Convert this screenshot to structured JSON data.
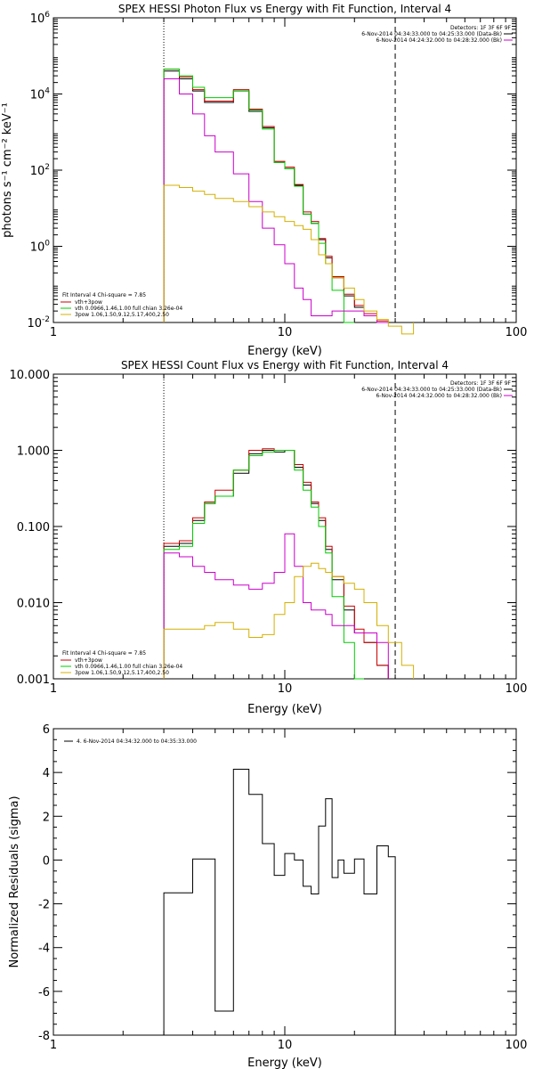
{
  "colors": {
    "black": "#000000",
    "red": "#cc0000",
    "green": "#00cc00",
    "magenta": "#cc00cc",
    "yellow": "#d4b000"
  },
  "chart_data": [
    {
      "type": "line",
      "title": "SPEX HESSI Photon Flux vs Energy with Fit Function, Interval 4",
      "xlabel": "Energy (keV)",
      "ylabel": "photons s⁻¹ cm⁻² keV⁻¹",
      "xscale": "log",
      "yscale": "log",
      "xlim": [
        1,
        100
      ],
      "ylim": [
        0.01,
        1000000
      ],
      "x_ticks": [
        "1",
        "10",
        "100"
      ],
      "y_ticks": [
        {
          "v": 0.01,
          "base": "10",
          "exp": "-2"
        },
        {
          "v": 1,
          "base": "10",
          "exp": "0"
        },
        {
          "v": 100,
          "base": "10",
          "exp": "2"
        },
        {
          "v": 10000,
          "base": "10",
          "exp": "4"
        },
        {
          "v": 1000000,
          "base": "10",
          "exp": "6"
        }
      ],
      "vlines": [
        {
          "x": 3,
          "style": "dotted"
        },
        {
          "x": 30,
          "style": "dashed"
        }
      ],
      "legend_top": [
        "Detectors: 1F 3F 6F 9F",
        "6-Nov-2014 04:34:33.000 to 04:25:33.000 (Data-Bk)",
        "6-Nov-2014 04:24:32.000 to 04:28:32.000 (Bk)"
      ],
      "legend_bottom": [
        "Fit Interval 4   Chi-square = 7.85",
        "vth+3pow",
        "vth 0.0966,1.46,1.00  full chian 3.26e-04",
        "3pow 1.06,1.50,9.12,5.17,400,2.50"
      ],
      "edges": [
        3,
        3.5,
        4,
        4.5,
        5,
        6,
        7,
        8,
        9,
        10,
        11,
        12,
        13,
        14,
        15,
        16,
        18,
        20,
        22,
        25,
        28,
        32,
        36
      ],
      "series": [
        {
          "color_key": "black",
          "values": [
            40000,
            25000,
            12000,
            6000,
            6000,
            12000,
            3500,
            1300,
            160,
            110,
            40,
            7,
            4,
            1.5,
            0.5,
            0.15,
            0.05,
            0.025,
            0.015,
            0.01
          ]
        },
        {
          "color_key": "red",
          "values": [
            45000,
            28000,
            13000,
            6500,
            6500,
            13000,
            4000,
            1400,
            170,
            120,
            42,
            8,
            4.5,
            1.6,
            0.55,
            0.16,
            0.055,
            0.028,
            0.017,
            0.011
          ]
        },
        {
          "color_key": "green",
          "values": [
            45000,
            30000,
            15000,
            8000,
            8000,
            12000,
            3800,
            1200,
            160,
            110,
            38,
            7,
            4,
            1.2,
            0.35,
            0.07,
            0.01
          ]
        },
        {
          "color_key": "magenta",
          "values": [
            25000,
            10000,
            3000,
            800,
            300,
            80,
            15,
            3,
            1.1,
            0.35,
            0.08,
            0.04,
            0.015,
            0.015,
            0.015,
            0.02,
            0.02,
            0.02,
            0.015,
            0.01
          ]
        },
        {
          "color_key": "yellow",
          "values": [
            40,
            35,
            28,
            23,
            18,
            15,
            11,
            8,
            6,
            4.5,
            3.5,
            2.8,
            1.5,
            0.6,
            0.35,
            0.15,
            0.08,
            0.04,
            0.02,
            0.012,
            0.008,
            0.005
          ]
        }
      ]
    },
    {
      "type": "line",
      "title": "SPEX HESSI Count Flux vs Energy with Fit Function, Interval 4",
      "xlabel": "Energy (keV)",
      "ylabel": "",
      "xscale": "log",
      "yscale": "log",
      "xlim": [
        1,
        100
      ],
      "ylim": [
        0.001,
        10
      ],
      "x_ticks": [
        "1",
        "10",
        "100"
      ],
      "y_ticks": [
        {
          "v": 0.001,
          "label": "0.001"
        },
        {
          "v": 0.01,
          "label": "0.010"
        },
        {
          "v": 0.1,
          "label": "0.100"
        },
        {
          "v": 1,
          "label": "1.000"
        },
        {
          "v": 10,
          "label": "10.000"
        }
      ],
      "vlines": [
        {
          "x": 3,
          "style": "dotted"
        },
        {
          "x": 30,
          "style": "dashed"
        }
      ],
      "legend_top": [
        "Detectors: 1F 3F 6F 9F",
        "6-Nov-2014 04:34:33.000 to 04:25:33.000 (Data-Bk)",
        "6-Nov-2014 04:24:32.000 to 04:28:32.000 (Bk)"
      ],
      "legend_bottom": [
        "Fit Interval 4   Chi-square = 7.85",
        "vth+3pow",
        "vth 0.0966,1.46,1.00  full chian 3.26e-04",
        "3pow 1.06,1.50,9.12,5.17,400,2.50"
      ],
      "edges": [
        3,
        3.5,
        4,
        4.5,
        5,
        6,
        7,
        8,
        9,
        10,
        11,
        12,
        13,
        14,
        15,
        16,
        18,
        20,
        22,
        25,
        28,
        32,
        36
      ],
      "series": [
        {
          "color_key": "black",
          "values": [
            0.055,
            0.06,
            0.12,
            0.2,
            0.25,
            0.5,
            0.9,
            1.0,
            0.95,
            1.0,
            0.6,
            0.35,
            0.2,
            0.12,
            0.05,
            0.02,
            0.008,
            0.004,
            0.003,
            0.0015
          ]
        },
        {
          "color_key": "red",
          "values": [
            0.06,
            0.065,
            0.13,
            0.21,
            0.3,
            0.55,
            1.0,
            1.05,
            1.0,
            1.0,
            0.65,
            0.38,
            0.21,
            0.13,
            0.055,
            0.022,
            0.009,
            0.0045,
            0.003,
            0.0015
          ]
        },
        {
          "color_key": "green",
          "values": [
            0.05,
            0.055,
            0.11,
            0.2,
            0.25,
            0.55,
            0.85,
            0.95,
            1.0,
            1.0,
            0.55,
            0.3,
            0.18,
            0.1,
            0.045,
            0.012,
            0.003,
            0.001
          ]
        },
        {
          "color_key": "magenta",
          "values": [
            0.045,
            0.04,
            0.03,
            0.025,
            0.02,
            0.017,
            0.015,
            0.018,
            0.025,
            0.08,
            0.03,
            0.01,
            0.008,
            0.008,
            0.007,
            0.005,
            0.005,
            0.004,
            0.004,
            0.003
          ]
        },
        {
          "color_key": "yellow",
          "values": [
            0.0045,
            0.0045,
            0.0045,
            0.005,
            0.0055,
            0.0045,
            0.0035,
            0.0038,
            0.007,
            0.01,
            0.022,
            0.03,
            0.033,
            0.028,
            0.025,
            0.022,
            0.018,
            0.015,
            0.01,
            0.005,
            0.003,
            0.0015
          ]
        }
      ]
    },
    {
      "type": "line",
      "title": "",
      "xlabel": "Energy (keV)",
      "ylabel": "Normalized Residuals (sigma)",
      "xscale": "log",
      "yscale": "linear",
      "xlim": [
        1,
        100
      ],
      "ylim": [
        -8,
        6
      ],
      "x_ticks": [
        "1",
        "10",
        "100"
      ],
      "y_ticks": [
        {
          "v": -8,
          "label": "-8"
        },
        {
          "v": -6,
          "label": "-6"
        },
        {
          "v": -4,
          "label": "-4"
        },
        {
          "v": -2,
          "label": "-2"
        },
        {
          "v": 0,
          "label": "0"
        },
        {
          "v": 2,
          "label": "2"
        },
        {
          "v": 4,
          "label": "4"
        },
        {
          "v": 6,
          "label": "6"
        }
      ],
      "legend_top": [
        "4.  6-Nov-2014 04:34:32.000 to 04:35:33.000"
      ],
      "edges": [
        3,
        4,
        5,
        6,
        7,
        8,
        9,
        10,
        11,
        12,
        13,
        14,
        15,
        16,
        17,
        18,
        20,
        22,
        25,
        28,
        30
      ],
      "series": [
        {
          "color_key": "black",
          "values": [
            -1.5,
            0.05,
            -6.9,
            4.15,
            3.0,
            0.75,
            -0.7,
            0.3,
            0.0,
            -1.2,
            -1.55,
            1.55,
            2.8,
            -0.8,
            0.0,
            -0.6,
            0.05,
            -1.55,
            0.65,
            0.15
          ]
        }
      ]
    }
  ]
}
